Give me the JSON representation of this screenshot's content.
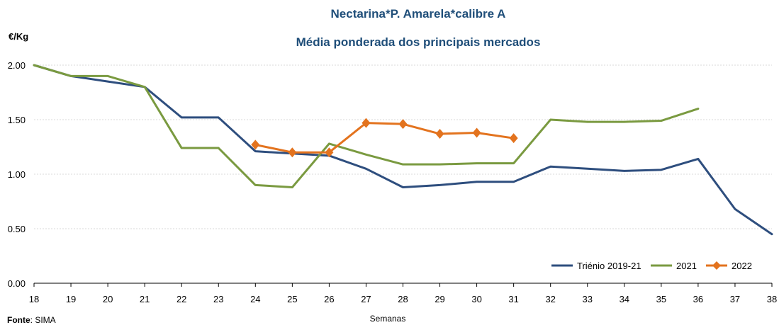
{
  "chart_data": {
    "type": "line",
    "title": "Nectarina*P. Amarela*calibre A",
    "subtitle": "Média ponderada dos principais mercados",
    "ylabel": "€/Kg",
    "xlabel": "Semanas",
    "source_label": "Fonte",
    "source_value": ": SIMA",
    "ylim": [
      0,
      2
    ],
    "yticks": [
      0,
      0.5,
      1,
      1.5,
      2
    ],
    "ytick_labels": [
      "0.00",
      "0.50",
      "1.00",
      "1.50",
      "2.00"
    ],
    "categories": [
      "18",
      "19",
      "20",
      "21",
      "22",
      "23",
      "24",
      "25",
      "26",
      "27",
      "28",
      "29",
      "30",
      "31",
      "32",
      "33",
      "34",
      "35",
      "36",
      "37",
      "38"
    ],
    "grid": "horizontal",
    "legend_position": "bottom-right",
    "series": [
      {
        "name": "Triénio 2019-21",
        "color": "#2E4E7E",
        "marker": "none",
        "values": [
          2.0,
          1.9,
          1.85,
          1.8,
          1.52,
          1.52,
          1.21,
          1.19,
          1.17,
          1.05,
          0.88,
          0.9,
          0.93,
          0.93,
          1.07,
          1.05,
          1.03,
          1.04,
          1.14,
          0.68,
          0.45
        ]
      },
      {
        "name": "2021",
        "color": "#7A9A40",
        "marker": "none",
        "values": [
          2.0,
          1.9,
          1.9,
          1.8,
          1.24,
          1.24,
          0.9,
          0.88,
          1.28,
          1.18,
          1.09,
          1.09,
          1.1,
          1.1,
          1.5,
          1.48,
          1.48,
          1.49,
          1.6,
          null,
          null
        ]
      },
      {
        "name": "2022",
        "color": "#E3731E",
        "marker": "diamond",
        "values": [
          null,
          null,
          null,
          null,
          null,
          null,
          1.27,
          1.2,
          1.2,
          1.47,
          1.46,
          1.37,
          1.38,
          1.33,
          null,
          null,
          null,
          null,
          null,
          null,
          null
        ]
      }
    ]
  },
  "colors": {
    "title": "#1F4E79",
    "grid": "#D9D9D9",
    "axis": "#000000"
  }
}
